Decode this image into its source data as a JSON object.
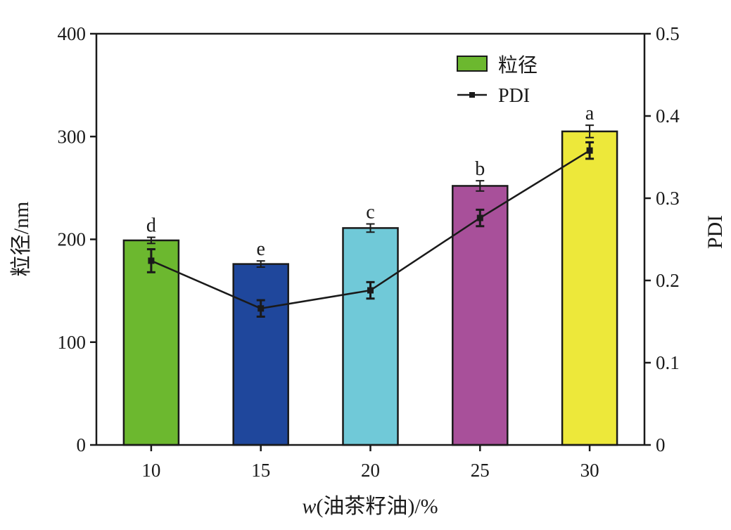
{
  "chart_data": {
    "type": "bar",
    "categories": [
      "10",
      "15",
      "20",
      "25",
      "30"
    ],
    "xlabel_var": "w",
    "xlabel_rest": "(油茶籽油)/%",
    "ylabel": "粒径/nm",
    "y2label": "PDI",
    "ylim": [
      0,
      400
    ],
    "y2lim": [
      0,
      0.5
    ],
    "yticks": [
      "0",
      "100",
      "200",
      "300",
      "400"
    ],
    "y2ticks": [
      "0",
      "0.1",
      "0.2",
      "0.3",
      "0.4",
      "0.5"
    ],
    "bar_series": {
      "name": "粒径",
      "values": [
        199,
        176,
        211,
        252,
        305
      ],
      "errors": [
        3,
        3,
        4,
        5,
        6
      ],
      "labels": [
        "d",
        "e",
        "c",
        "b",
        "a"
      ],
      "colors": [
        "#6cb82f",
        "#1f479c",
        "#70c9d8",
        "#a8509a",
        "#ede83a"
      ]
    },
    "line_series": {
      "name": "PDI",
      "values": [
        0.224,
        0.166,
        0.188,
        0.276,
        0.358
      ],
      "errors": [
        0.014,
        0.01,
        0.01,
        0.01,
        0.01
      ],
      "color": "#1a1a1a"
    },
    "legend_position": "top-right",
    "grid": false
  }
}
